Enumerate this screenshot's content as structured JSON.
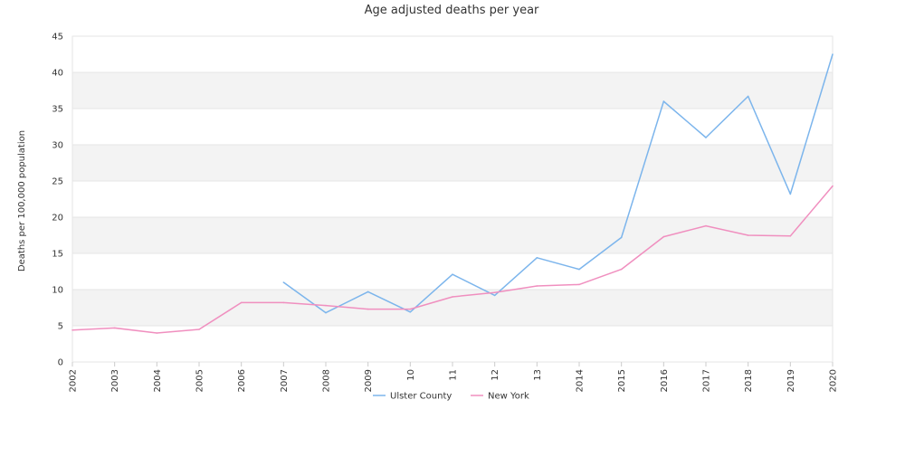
{
  "chart_data": {
    "type": "line",
    "title": "Age adjusted deaths per year",
    "xlabel": "",
    "ylabel": "Deaths per 100,000 population",
    "ylim": [
      0,
      45
    ],
    "y_ticks": [
      0,
      5,
      10,
      15,
      20,
      25,
      30,
      35,
      40,
      45
    ],
    "categories": [
      "2002",
      "2003",
      "2004",
      "2005",
      "2006",
      "2007",
      "2008",
      "2009",
      "2010",
      "2011",
      "2012",
      "2013",
      "2014",
      "2015",
      "2016",
      "2017",
      "2018",
      "2019",
      "2020"
    ],
    "tick_labels": [
      "2002",
      "2003",
      "2004",
      "2005",
      "2006",
      "2007",
      "2008",
      "2009",
      "10",
      "11",
      "12",
      "13",
      "2014",
      "2015",
      "2016",
      "2017",
      "2018",
      "2019",
      "2020"
    ],
    "grid": true,
    "banded_background": true,
    "legend_position": "bottom",
    "series": [
      {
        "name": "Ulster County",
        "color": "#7cb5ec",
        "values": [
          null,
          null,
          null,
          null,
          null,
          11.0,
          6.8,
          9.7,
          6.9,
          12.1,
          9.2,
          14.4,
          12.8,
          17.2,
          36.0,
          31.0,
          36.7,
          23.2,
          42.5
        ]
      },
      {
        "name": "New York",
        "color": "#f08fbf",
        "values": [
          4.4,
          4.7,
          4.0,
          4.5,
          8.2,
          8.2,
          7.8,
          7.3,
          7.3,
          9.0,
          9.6,
          10.5,
          10.7,
          12.8,
          17.3,
          18.8,
          17.5,
          17.4,
          24.3
        ]
      }
    ]
  }
}
